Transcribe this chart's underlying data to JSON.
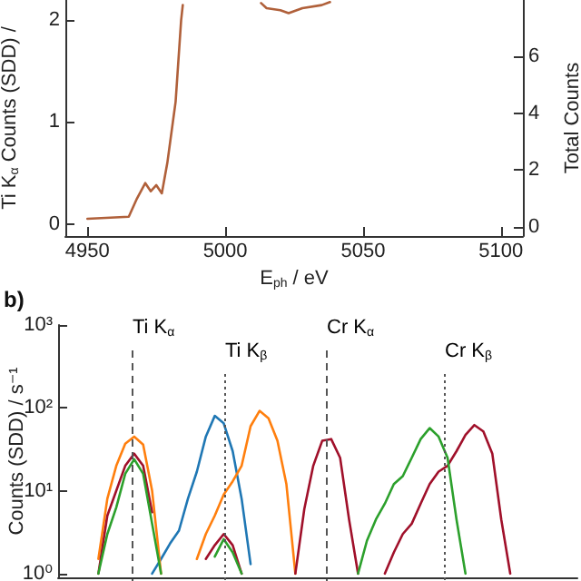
{
  "chart_data": [
    {
      "type": "line",
      "xlabel": "E$_{ph}$ / eV",
      "ylabel": "Ti K$_{α}$ Counts (SDD) /",
      "y2label": "Total Counts",
      "x": [
        4950,
        4965,
        4968,
        4971,
        4973,
        4975,
        4977,
        4979,
        4981,
        4982,
        4984,
        4984.6,
        4998,
        5013,
        5015,
        5020,
        5023,
        5028,
        5035,
        5038
      ],
      "series": [
        {
          "color": "#b0603a",
          "values": [
            0.05,
            0.07,
            0.25,
            0.4,
            0.32,
            0.38,
            0.3,
            0.6,
            1.0,
            1.2,
            2.0,
            2.15,
            null,
            2.17,
            2.12,
            2.1,
            2.07,
            2.12,
            2.15,
            2.18
          ]
        }
      ],
      "xlim": [
        4942,
        5108
      ],
      "xticks": [
        4950,
        5000,
        5050,
        5100
      ],
      "ylim": [
        -0.12,
        2.2
      ],
      "yticks": [
        0,
        1,
        2
      ],
      "y2lim": [
        -0.33,
        8
      ],
      "y2ticks": [
        0,
        2,
        4,
        6
      ],
      "grid": false,
      "marker": "none",
      "line_style": "solid"
    },
    {
      "type": "line",
      "title": "b)",
      "ylabel": "Counts (SDD) / s⁻¹",
      "log": "y",
      "annotations": [
        "Ti K$_{α}$",
        "Ti K$_{β}$",
        "Cr K$_{α}$",
        "Cr K$_{β}$"
      ],
      "categories": [
        null,
        null,
        null,
        null,
        null,
        null,
        null,
        null,
        null,
        null,
        null,
        null,
        null,
        null,
        null,
        null,
        null,
        null,
        null,
        null,
        null,
        null,
        null,
        null,
        null,
        null,
        null,
        null,
        null,
        null,
        null,
        null,
        null,
        null,
        null,
        null,
        null,
        null,
        null,
        null,
        null,
        null,
        null,
        null,
        null,
        null,
        null,
        null,
        null,
        null,
        null,
        null,
        null,
        null,
        null,
        null,
        null,
        null
      ],
      "series": [
        {
          "color": "#1f77b4",
          "values": [
            null,
            null,
            null,
            null,
            null,
            null,
            null,
            null,
            null,
            null,
            1,
            1.5,
            2.3,
            3.3,
            8,
            17,
            45,
            80,
            65,
            30,
            8,
            1.3,
            null,
            null,
            null,
            null,
            null,
            null,
            null,
            null,
            null,
            null,
            null,
            null,
            null,
            null,
            null,
            null,
            null,
            null,
            null,
            null,
            null,
            null,
            null,
            null,
            null,
            null,
            null,
            null,
            null,
            null,
            null,
            null,
            null,
            null,
            null,
            null
          ]
        },
        {
          "color": "#ff7f0e",
          "values": [
            null,
            null,
            null,
            null,
            1.5,
            8,
            20,
            37,
            45,
            36,
            10,
            1,
            null,
            null,
            null,
            1.5,
            3,
            5,
            9,
            13,
            20,
            60,
            92,
            75,
            40,
            12,
            1,
            null,
            null,
            null,
            null,
            null,
            null,
            null,
            null,
            null,
            null,
            null,
            null,
            null,
            null,
            null,
            null,
            null,
            null,
            null,
            null,
            null,
            null,
            null,
            null,
            null,
            null,
            null,
            null,
            null,
            null,
            null
          ]
        },
        {
          "color": "#a0102a",
          "values": [
            null,
            null,
            null,
            null,
            1,
            5,
            10,
            20,
            28,
            20,
            5.5,
            null,
            null,
            null,
            null,
            null,
            1.5,
            2.2,
            3,
            2.2,
            1,
            null,
            null,
            null,
            null,
            null,
            1,
            6,
            20,
            40,
            42,
            25,
            4.5,
            1,
            null,
            null,
            1,
            1.8,
            3,
            4,
            7,
            12,
            17,
            20,
            30,
            47,
            62,
            52,
            28,
            4.5,
            1,
            null,
            null,
            null,
            null,
            null,
            null,
            null
          ]
        },
        {
          "color": "#2ca02c",
          "values": [
            null,
            null,
            null,
            null,
            1,
            3,
            6.3,
            16,
            24,
            16,
            4,
            1,
            null,
            null,
            null,
            null,
            null,
            1.6,
            2.6,
            1.8,
            1,
            null,
            null,
            null,
            null,
            null,
            null,
            null,
            null,
            null,
            null,
            null,
            null,
            1,
            2.5,
            4.5,
            7,
            12,
            15,
            25,
            42,
            57,
            45,
            25,
            4.5,
            1,
            null,
            null,
            null,
            null,
            null,
            null,
            null,
            null,
            null,
            null,
            null,
            null
          ]
        }
      ],
      "ylim": [
        0.9,
        1000
      ],
      "yticks": [
        {
          "value": 1,
          "label": "10⁰"
        },
        {
          "value": 10,
          "label": "10¹"
        },
        {
          "value": 100,
          "label": "10²"
        },
        {
          "value": 1000,
          "label": "10³"
        }
      ],
      "grid": false,
      "marker": "none",
      "line_style": "solid"
    }
  ]
}
